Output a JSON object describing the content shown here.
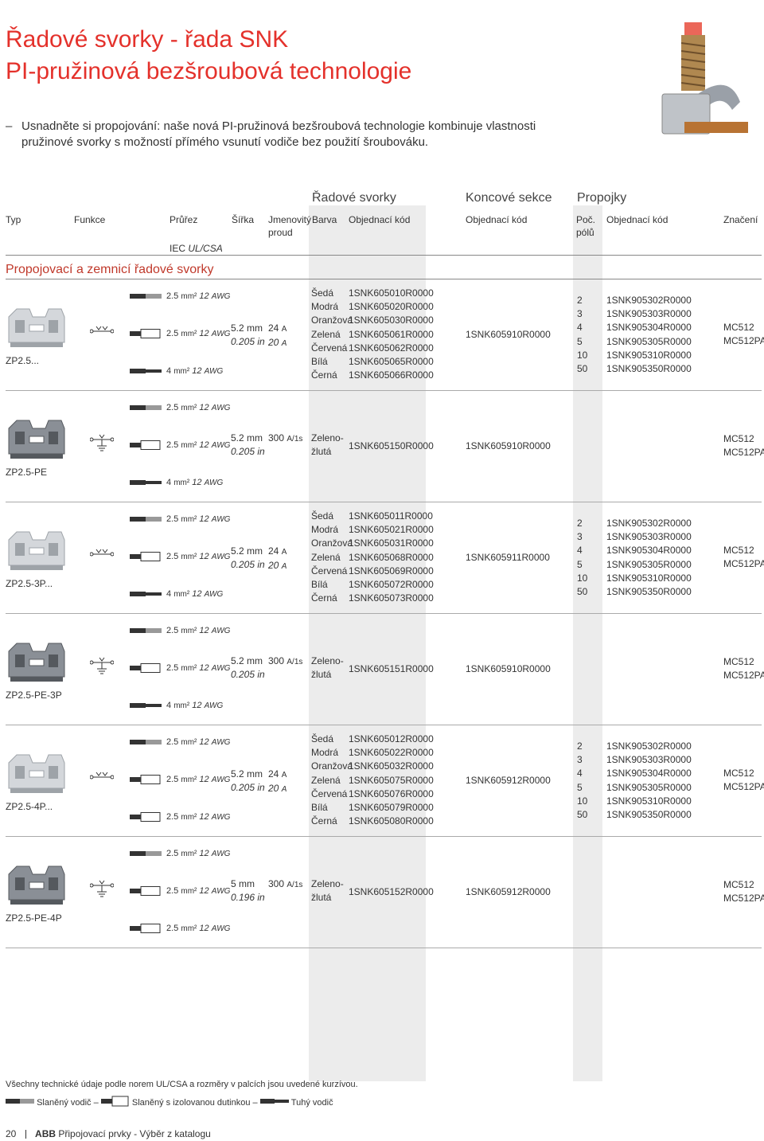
{
  "title": {
    "line1": "Řadové svorky - řada SNK",
    "line2": "PI-pružinová bezšroubová technologie"
  },
  "intro": {
    "dash": "–",
    "text": "Usnadněte si propojování: naše nová PI-pružinová bezšroubová technologie kombinuje vlastnosti pružinové svorky s možností přímého vsunutí vodiče bez použití šroubováku."
  },
  "group_headers": {
    "radove": "Řadové svorky",
    "koncove": "Koncové sekce",
    "propojky": "Propojky"
  },
  "headers": {
    "typ": "Typ",
    "funkce": "Funkce",
    "prurez": "Průřez",
    "iec": "IEC",
    "ulcsa": "UL/CSA",
    "sirka": "Šířka",
    "jmenovity": "Jmenovitý",
    "proud": "proud",
    "barva": "Barva",
    "obj1": "Objednací kód",
    "obj2": "Objednací kód",
    "poc": "Poč.",
    "polu": "pólů",
    "obj3": "Objednací kód",
    "znaceni": "Značení"
  },
  "section_title": "Propojovací a zemnicí řadové svorky",
  "units": {
    "mm2": "mm²",
    "awg": "AWG",
    "mm": "mm",
    "inch": "in"
  },
  "rows": [
    {
      "type": "ZP2.5...",
      "cond": [
        "2.5",
        "2.5",
        "4"
      ],
      "awg": [
        "12",
        "12",
        "12"
      ],
      "width_mm": "5.2",
      "width_in": "0.205",
      "current1": "24",
      "current1_unit": "A",
      "current2": "20",
      "current2_unit": "A",
      "colors": [
        "Šedá",
        "Modrá",
        "Oranžová",
        "Zelená",
        "Červená",
        "Bílá",
        "Černá"
      ],
      "codes": [
        "1SNK605010R0000",
        "1SNK605020R0000",
        "1SNK605030R0000",
        "1SNK605061R0000",
        "1SNK605062R0000",
        "1SNK605065R0000",
        "1SNK605066R0000"
      ],
      "end": "1SNK605910R0000",
      "poles": [
        "2",
        "3",
        "4",
        "5",
        "10",
        "50"
      ],
      "jumpers": [
        "1SNK905302R0000",
        "1SNK905303R0000",
        "1SNK905304R0000",
        "1SNK905305R0000",
        "1SNK905310R0000",
        "1SNK905350R0000"
      ],
      "mark": [
        "MC512",
        "MC512PA"
      ]
    },
    {
      "type": "ZP2.5-PE",
      "cond": [
        "2.5",
        "2.5",
        "4"
      ],
      "awg": [
        "12",
        "12",
        "12"
      ],
      "width_mm": "5.2",
      "width_in": "0.205",
      "current1": "300",
      "current1_unit": "A/1s",
      "colors": [
        "Zeleno-",
        "žlutá"
      ],
      "codes": [
        "1SNK605150R0000"
      ],
      "end": "1SNK605910R0000",
      "mark": [
        "MC512",
        "MC512PA"
      ]
    },
    {
      "type": "ZP2.5-3P...",
      "cond": [
        "2.5",
        "2.5",
        "4"
      ],
      "awg": [
        "12",
        "12",
        "12"
      ],
      "width_mm": "5.2",
      "width_in": "0.205",
      "current1": "24",
      "current1_unit": "A",
      "current2": "20",
      "current2_unit": "A",
      "colors": [
        "Šedá",
        "Modrá",
        "Oranžová",
        "Zelená",
        "Červená",
        "Bílá",
        "Černá"
      ],
      "codes": [
        "1SNK605011R0000",
        "1SNK605021R0000",
        "1SNK605031R0000",
        "1SNK605068R0000",
        "1SNK605069R0000",
        "1SNK605072R0000",
        "1SNK605073R0000"
      ],
      "end": "1SNK605911R0000",
      "poles": [
        "2",
        "3",
        "4",
        "5",
        "10",
        "50"
      ],
      "jumpers": [
        "1SNK905302R0000",
        "1SNK905303R0000",
        "1SNK905304R0000",
        "1SNK905305R0000",
        "1SNK905310R0000",
        "1SNK905350R0000"
      ],
      "mark": [
        "MC512",
        "MC512PA"
      ]
    },
    {
      "type": "ZP2.5-PE-3P",
      "cond": [
        "2.5",
        "2.5",
        "4"
      ],
      "awg": [
        "12",
        "12",
        "12"
      ],
      "width_mm": "5.2",
      "width_in": "0.205",
      "current1": "300",
      "current1_unit": "A/1s",
      "colors": [
        "Zeleno-",
        "žlutá"
      ],
      "codes": [
        "1SNK605151R0000"
      ],
      "end": "1SNK605910R0000",
      "mark": [
        "MC512",
        "MC512PA"
      ]
    },
    {
      "type": "ZP2.5-4P...",
      "cond": [
        "2.5",
        "2.5",
        "2.5"
      ],
      "awg": [
        "12",
        "12",
        "12"
      ],
      "width_mm": "5.2",
      "width_in": "0.205",
      "current1": "24",
      "current1_unit": "A",
      "current2": "20",
      "current2_unit": "A",
      "colors": [
        "Šedá",
        "Modrá",
        "Oranžová",
        "Zelená",
        "Červená",
        "Bílá",
        "Černá"
      ],
      "codes": [
        "1SNK605012R0000",
        "1SNK605022R0000",
        "1SNK605032R0000",
        "1SNK605075R0000",
        "1SNK605076R0000",
        "1SNK605079R0000",
        "1SNK605080R0000"
      ],
      "end": "1SNK605912R0000",
      "poles": [
        "2",
        "3",
        "4",
        "5",
        "10",
        "50"
      ],
      "jumpers": [
        "1SNK905302R0000",
        "1SNK905303R0000",
        "1SNK905304R0000",
        "1SNK905305R0000",
        "1SNK905310R0000",
        "1SNK905350R0000"
      ],
      "mark": [
        "MC512",
        "MC512PA"
      ]
    },
    {
      "type": "ZP2.5-PE-4P",
      "cond": [
        "2.5",
        "2.5",
        "2.5"
      ],
      "awg": [
        "12",
        "12",
        "12"
      ],
      "width_mm": "5",
      "width_in": "0.196",
      "current1": "300",
      "current1_unit": "A/1s",
      "colors": [
        "Zeleno-",
        "žlutá"
      ],
      "codes": [
        "1SNK605152R0000"
      ],
      "end": "1SNK605912R0000",
      "mark": [
        "MC512",
        "MC512PA"
      ]
    }
  ],
  "footnote": "Všechny technické údaje podle norem UL/CSA a rozměry v palcích jsou uvedené kurzívou.",
  "legend": {
    "a": "Slaněný vodič",
    "b": "Slaněný s izolovanou dutinkou",
    "c": "Tuhý vodič",
    "dash": "–"
  },
  "page_footer": {
    "page": "20",
    "brand": "ABB",
    "text": "Připojovací prvky - Výběr z katalogu"
  }
}
